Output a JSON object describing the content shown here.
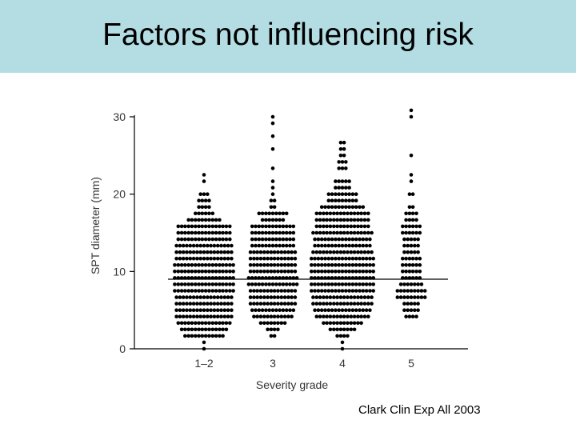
{
  "slide": {
    "title": "Factors not influencing risk",
    "citation": "Clark Clin Exp All 2003"
  },
  "colors": {
    "title_band": "#b3dde3",
    "dots": "#000000",
    "axis": "#000000",
    "median_line": "#000000"
  },
  "chart_data": {
    "type": "scatter",
    "subtype": "dot-plot (beeswarm) by category",
    "xlabel": "Severity grade",
    "ylabel": "SPT diameter (mm)",
    "ylim": [
      0,
      30
    ],
    "yticks": [
      0,
      10,
      20,
      30
    ],
    "categories": [
      "1–2",
      "3",
      "4",
      "5"
    ],
    "grid": false,
    "legend": "none",
    "median_value": 9,
    "groups": [
      {
        "category": "1–2",
        "points_per_level": [
          [
            0,
            1
          ],
          [
            1,
            1
          ],
          [
            2,
            12
          ],
          [
            3,
            14
          ],
          [
            4,
            16
          ],
          [
            5,
            17
          ],
          [
            6,
            17
          ],
          [
            7,
            17
          ],
          [
            8,
            17
          ],
          [
            9,
            18
          ],
          [
            10,
            18
          ],
          [
            11,
            18
          ],
          [
            12,
            18
          ],
          [
            13,
            18
          ],
          [
            14,
            17
          ],
          [
            15,
            17
          ],
          [
            16,
            17
          ],
          [
            17,
            16
          ],
          [
            18,
            16
          ],
          [
            19,
            16
          ],
          [
            20,
            10
          ],
          [
            21,
            6
          ],
          [
            22,
            4
          ],
          [
            23,
            4
          ],
          [
            24,
            3
          ],
          [
            26,
            1
          ],
          [
            27,
            1
          ]
        ]
      },
      {
        "category": "3",
        "points_per_level": [
          [
            2,
            2
          ],
          [
            3,
            4
          ],
          [
            4,
            8
          ],
          [
            5,
            12
          ],
          [
            6,
            13
          ],
          [
            7,
            14
          ],
          [
            8,
            14
          ],
          [
            9,
            14
          ],
          [
            10,
            15
          ],
          [
            11,
            15
          ],
          [
            12,
            14
          ],
          [
            13,
            14
          ],
          [
            14,
            14
          ],
          [
            15,
            14
          ],
          [
            16,
            13
          ],
          [
            17,
            13
          ],
          [
            18,
            13
          ],
          [
            19,
            13
          ],
          [
            20,
            7
          ],
          [
            21,
            9
          ],
          [
            22,
            2
          ],
          [
            23,
            2
          ],
          [
            24,
            1
          ],
          [
            25,
            1
          ],
          [
            26,
            1
          ],
          [
            28,
            1
          ],
          [
            31,
            1
          ],
          [
            33,
            1
          ],
          [
            35,
            1
          ],
          [
            36,
            1
          ]
        ]
      },
      {
        "category": "4",
        "points_per_level": [
          [
            0,
            1
          ],
          [
            1,
            1
          ],
          [
            2,
            4
          ],
          [
            3,
            8
          ],
          [
            4,
            12
          ],
          [
            5,
            16
          ],
          [
            6,
            17
          ],
          [
            7,
            18
          ],
          [
            8,
            18
          ],
          [
            9,
            19
          ],
          [
            10,
            19
          ],
          [
            11,
            19
          ],
          [
            12,
            19
          ],
          [
            13,
            19
          ],
          [
            14,
            19
          ],
          [
            15,
            18
          ],
          [
            16,
            17
          ],
          [
            17,
            17
          ],
          [
            18,
            18
          ],
          [
            19,
            16
          ],
          [
            20,
            16
          ],
          [
            21,
            16
          ],
          [
            22,
            13
          ],
          [
            23,
            9
          ],
          [
            24,
            9
          ],
          [
            25,
            5
          ],
          [
            26,
            5
          ],
          [
            28,
            3
          ],
          [
            29,
            3
          ],
          [
            30,
            2
          ],
          [
            31,
            2
          ],
          [
            32,
            2
          ]
        ]
      },
      {
        "category": "5",
        "points_per_level": [
          [
            5,
            4
          ],
          [
            6,
            5
          ],
          [
            7,
            5
          ],
          [
            8,
            9
          ],
          [
            9,
            9
          ],
          [
            10,
            7
          ],
          [
            11,
            6
          ],
          [
            12,
            6
          ],
          [
            13,
            6
          ],
          [
            14,
            6
          ],
          [
            15,
            5
          ],
          [
            16,
            5
          ],
          [
            17,
            5
          ],
          [
            18,
            6
          ],
          [
            19,
            6
          ],
          [
            20,
            4
          ],
          [
            21,
            4
          ],
          [
            22,
            2
          ],
          [
            24,
            2
          ],
          [
            26,
            1
          ],
          [
            27,
            1
          ],
          [
            30,
            1
          ],
          [
            36,
            1
          ],
          [
            37,
            1
          ]
        ]
      }
    ]
  }
}
